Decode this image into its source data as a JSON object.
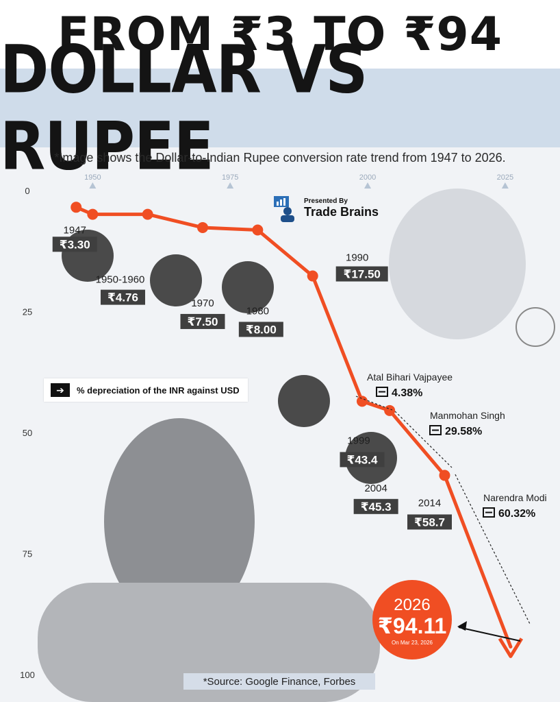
{
  "header": {
    "title_line1": "FROM ₹3 TO ₹94",
    "title_line2": "DOLLAR VS RUPEE",
    "subtitle": "*Image shows the Dollar-to-Indian Rupee conversion rate trend from 1947 to 2026."
  },
  "brand": {
    "presented_by": "Presented By",
    "name": "Trade Brains"
  },
  "legend": {
    "text": "% depreciation of the INR against USD",
    "icon": "arrow-right-icon"
  },
  "source": "*Source: Google Finance, Forbes",
  "colors": {
    "line": "#f04e23",
    "badge": "#3f3f3f",
    "band": "#cfdcea",
    "callout": "#f04e23"
  },
  "chart_data": {
    "type": "line",
    "title": "DOLLAR VS RUPEE",
    "y_inverted": true,
    "ylim": [
      0,
      100
    ],
    "xlim": [
      1940,
      2029
    ],
    "y_ticks": [
      "0",
      "25",
      "50",
      "75",
      "100"
    ],
    "x_ticks": [
      "1950",
      "1975",
      "2000",
      "2025"
    ],
    "series": [
      {
        "points": [
          {
            "x": 1947,
            "y": 3.3
          },
          {
            "x": 1950,
            "y": 4.76
          },
          {
            "x": 1960,
            "y": 4.76
          },
          {
            "x": 1970,
            "y": 7.5
          },
          {
            "x": 1980,
            "y": 8.0
          },
          {
            "x": 1990,
            "y": 17.5
          },
          {
            "x": 1999,
            "y": 43.4
          },
          {
            "x": 2004,
            "y": 45.3
          },
          {
            "x": 2014,
            "y": 58.7
          },
          {
            "x": 2026,
            "y": 94.11
          }
        ]
      }
    ],
    "labels": [
      {
        "year": "1947",
        "value": "₹3.30"
      },
      {
        "year": "1950-1960",
        "value": "₹4.76"
      },
      {
        "year": "1970",
        "value": "₹7.50"
      },
      {
        "year": "1980",
        "value": "₹8.00"
      },
      {
        "year": "1990",
        "value": "₹17.50"
      },
      {
        "year": "1999",
        "value": "₹43.4"
      },
      {
        "year": "2004",
        "value": "₹45.3"
      },
      {
        "year": "2014",
        "value": "₹58.7"
      }
    ],
    "annotations": [
      {
        "name": "Atal Bihari Vajpayee",
        "pct": "4.38%"
      },
      {
        "name": "Manmohan Singh",
        "pct": "29.58%"
      },
      {
        "name": "Narendra Modi",
        "pct": "60.32%"
      }
    ],
    "callout": {
      "year": "2026",
      "value": "₹94.11",
      "date": "On Mar 23, 2026"
    }
  }
}
